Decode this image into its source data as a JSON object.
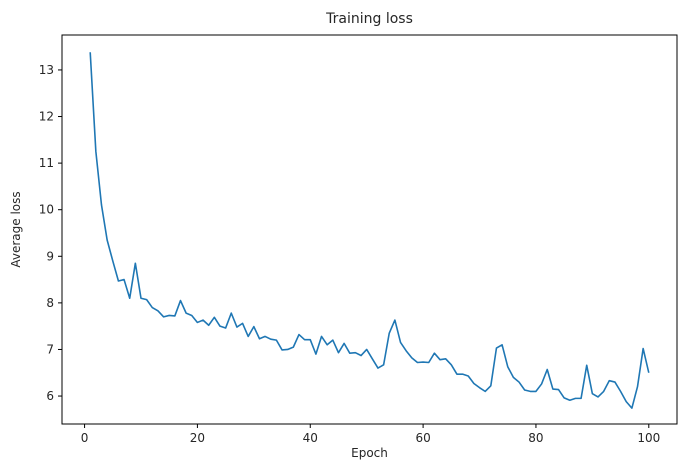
{
  "chart_data": {
    "type": "line",
    "title": "Training loss",
    "xlabel": "Epoch",
    "ylabel": "Average loss",
    "xlim": [
      -4.0,
      105.0
    ],
    "ylim": [
      5.4,
      13.75
    ],
    "xticks": [
      0,
      20,
      40,
      60,
      80,
      100
    ],
    "yticks": [
      6,
      7,
      8,
      9,
      10,
      11,
      12,
      13
    ],
    "grid": false,
    "line_color": "#1f77b4",
    "series": [
      {
        "x": [
          1,
          2,
          3,
          4,
          5,
          6,
          7,
          8,
          9,
          10,
          11,
          12,
          13,
          14,
          15,
          16,
          17,
          18,
          19,
          20,
          21,
          22,
          23,
          24,
          25,
          26,
          27,
          28,
          29,
          30,
          31,
          32,
          33,
          34,
          35,
          36,
          37,
          38,
          39,
          40,
          41,
          42,
          43,
          44,
          45,
          46,
          47,
          48,
          49,
          50,
          51,
          52,
          53,
          54,
          55,
          56,
          57,
          58,
          59,
          60,
          61,
          62,
          63,
          64,
          65,
          66,
          67,
          68,
          69,
          70,
          71,
          72,
          73,
          74,
          75,
          76,
          77,
          78,
          79,
          80,
          81,
          82,
          83,
          84,
          85,
          86,
          87,
          88,
          89,
          90,
          91,
          92,
          93,
          94,
          95,
          96,
          97,
          98,
          99,
          100
        ],
        "values": [
          13.38,
          11.25,
          10.1,
          9.35,
          8.9,
          8.47,
          8.5,
          8.1,
          8.85,
          8.1,
          8.07,
          7.9,
          7.83,
          7.7,
          7.73,
          7.72,
          8.05,
          7.78,
          7.73,
          7.58,
          7.63,
          7.52,
          7.69,
          7.5,
          7.46,
          7.78,
          7.48,
          7.56,
          7.28,
          7.49,
          7.23,
          7.28,
          7.22,
          7.2,
          6.99,
          7.0,
          7.05,
          7.32,
          7.21,
          7.21,
          6.9,
          7.28,
          7.1,
          7.2,
          6.93,
          7.13,
          6.92,
          6.93,
          6.87,
          7.0,
          6.8,
          6.6,
          6.67,
          7.35,
          7.63,
          7.15,
          6.97,
          6.82,
          6.72,
          6.73,
          6.72,
          6.92,
          6.78,
          6.8,
          6.67,
          6.47,
          6.47,
          6.43,
          6.27,
          6.18,
          6.1,
          6.22,
          7.03,
          7.1,
          6.63,
          6.4,
          6.3,
          6.13,
          6.1,
          6.1,
          6.26,
          6.57,
          6.15,
          6.14,
          5.96,
          5.91,
          5.95,
          5.95,
          6.66,
          6.05,
          5.98,
          6.1,
          6.33,
          6.3,
          6.1,
          5.88,
          5.74,
          6.2,
          7.02,
          6.5
        ]
      }
    ]
  }
}
